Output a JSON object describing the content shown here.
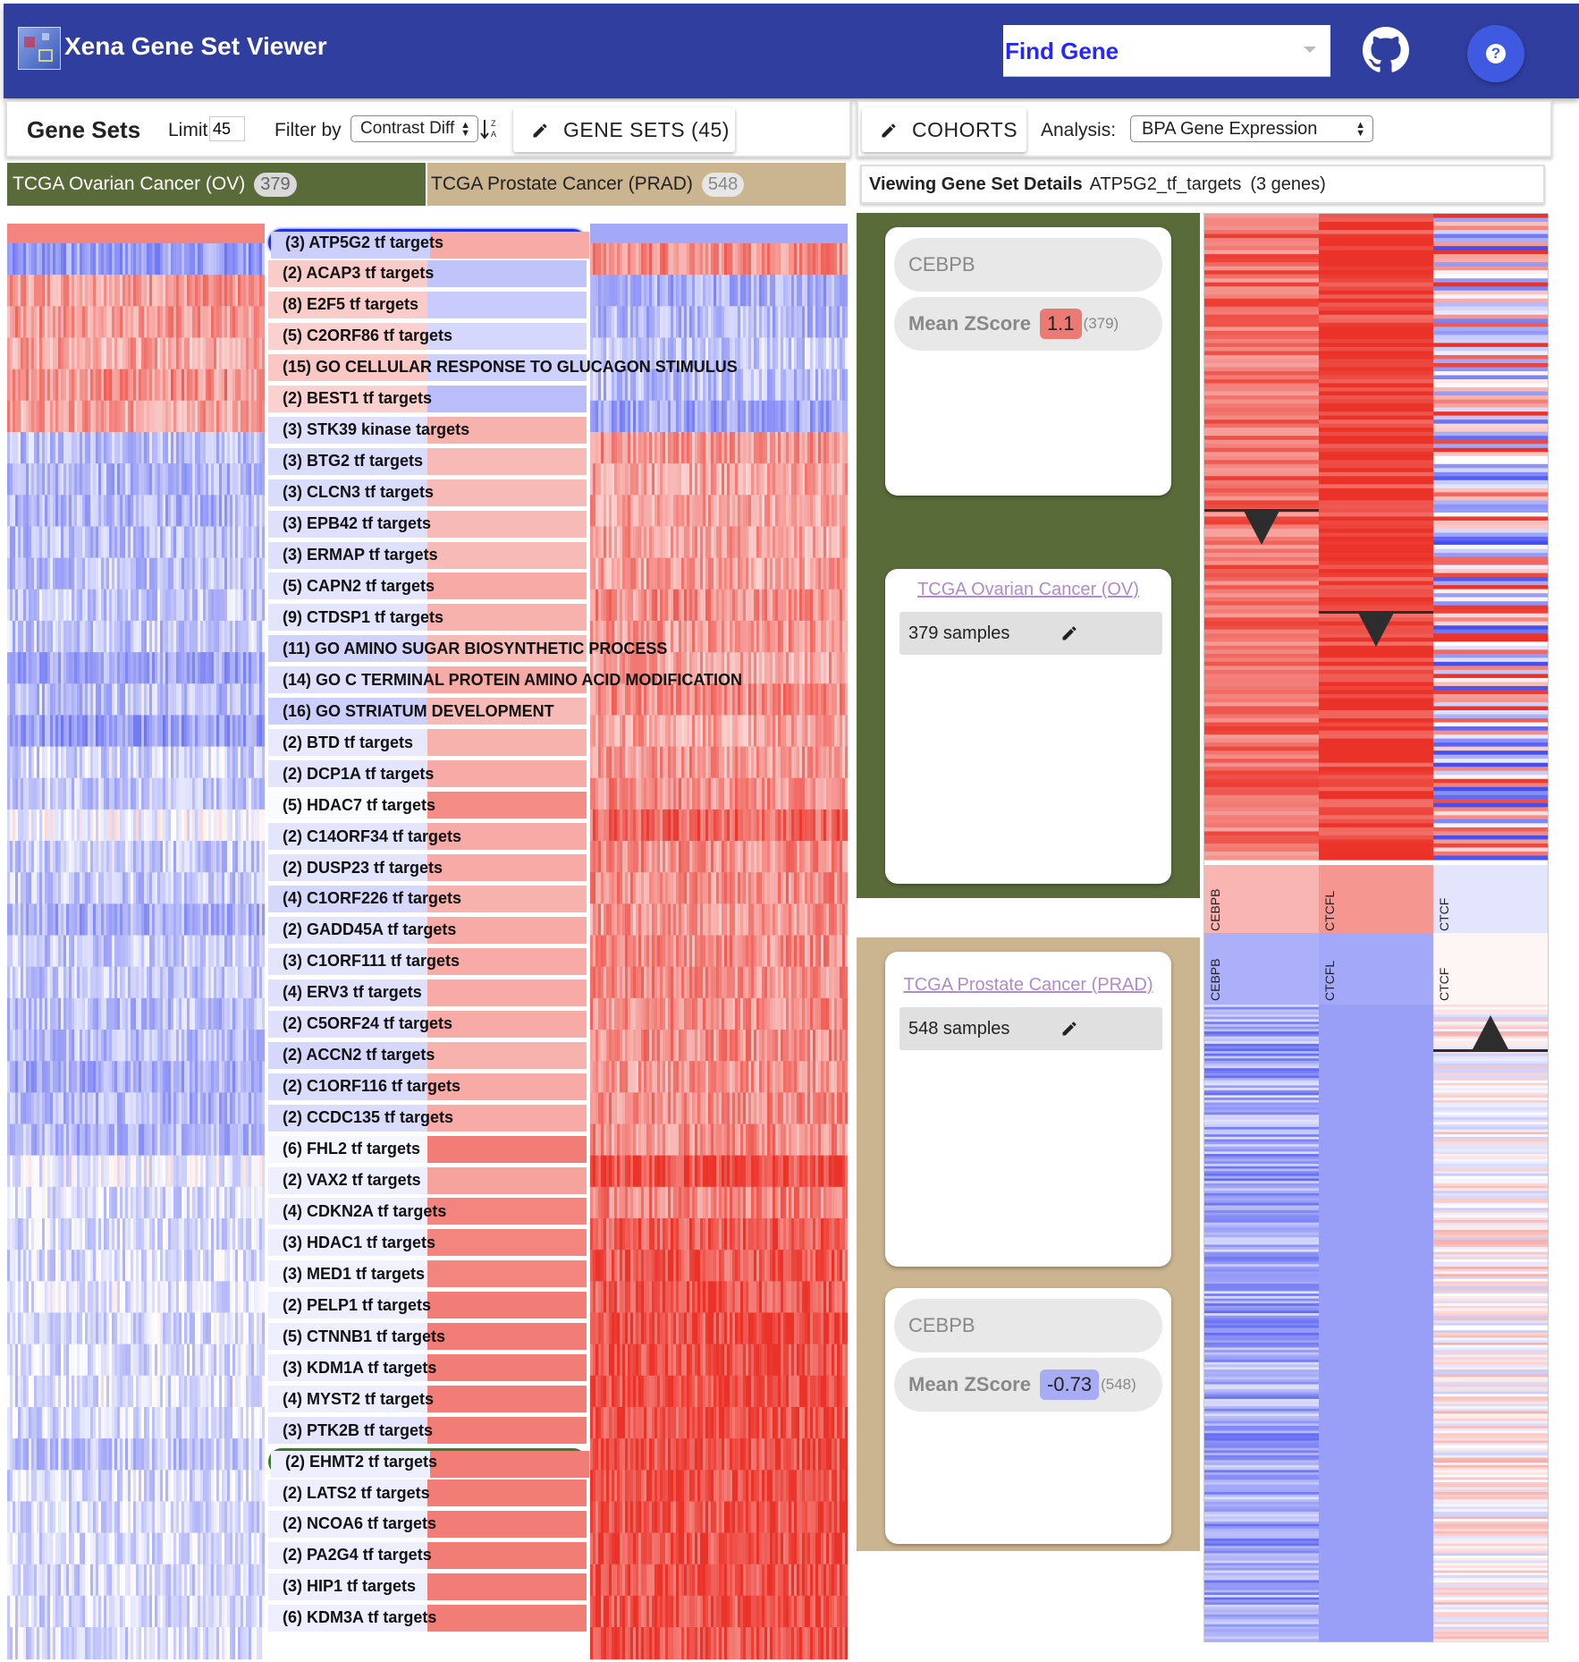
{
  "app": {
    "title": "Xena Gene Set Viewer"
  },
  "search": {
    "placeholder": "Find Gene"
  },
  "toolbar": {
    "gene_sets_label": "Gene Sets",
    "limit_label": "Limit",
    "limit_value": "45",
    "filter_label": "Filter by",
    "filter_value": "Contrast Diff",
    "gene_sets_button": "GENE SETS (45)",
    "cohorts_button": "COHORTS",
    "analysis_label": "Analysis:",
    "analysis_value": "BPA Gene Expression"
  },
  "cohorts": [
    {
      "name": "TCGA Ovarian Cancer (OV)",
      "count": "379",
      "color": "#5a6b3a"
    },
    {
      "name": "TCGA Prostate Cancer (PRAD)",
      "count": "548",
      "color": "#cbb490"
    }
  ],
  "details": {
    "heading": "Viewing Gene Set Details",
    "gene_set": "ATP5G2_tf_targets",
    "gene_count": "(3 genes)"
  },
  "gene_sets": [
    {
      "label": "(3) ATP5G2 tf targets",
      "ov": -0.55,
      "prad": 0.55
    },
    {
      "label": "(2) ACAP3 tf targets",
      "ov": 0.5,
      "prad": -0.45
    },
    {
      "label": "(8) E2F5 tf targets",
      "ov": 0.5,
      "prad": -0.4
    },
    {
      "label": "(5) C2ORF86 tf targets",
      "ov": 0.45,
      "prad": -0.3
    },
    {
      "label": "(15) GO CELLULAR RESPONSE TO GLUCAGON STIMULUS",
      "ov": 0.55,
      "prad": -0.35
    },
    {
      "label": "(2) BEST1 tf targets",
      "ov": 0.45,
      "prad": -0.5
    },
    {
      "label": "(3) STK39 kinase targets",
      "ov": -0.35,
      "prad": 0.5
    },
    {
      "label": "(3) BTG2 tf targets",
      "ov": -0.4,
      "prad": 0.45
    },
    {
      "label": "(3) CLCN3 tf targets",
      "ov": -0.4,
      "prad": 0.45
    },
    {
      "label": "(3) EPB42 tf targets",
      "ov": -0.35,
      "prad": 0.45
    },
    {
      "label": "(3) ERMAP tf targets",
      "ov": -0.35,
      "prad": 0.45
    },
    {
      "label": "(5) CAPN2 tf targets",
      "ov": -0.3,
      "prad": 0.55
    },
    {
      "label": "(9) CTDSP1 tf targets",
      "ov": -0.3,
      "prad": 0.5
    },
    {
      "label": "(11) GO AMINO SUGAR BIOSYNTHETIC PROCESS",
      "ov": -0.5,
      "prad": 0.45
    },
    {
      "label": "(14) GO C TERMINAL PROTEIN AMINO ACID MODIFICATION",
      "ov": -0.35,
      "prad": 0.55
    },
    {
      "label": "(16) GO STRIATUM DEVELOPMENT",
      "ov": -0.55,
      "prad": 0.45
    },
    {
      "label": "(2) BTD tf targets",
      "ov": -0.25,
      "prad": 0.5
    },
    {
      "label": "(2) DCP1A tf targets",
      "ov": -0.3,
      "prad": 0.55
    },
    {
      "label": "(5) HDAC7 tf targets",
      "ov": -0.05,
      "prad": 0.75
    },
    {
      "label": "(2) C14ORF34 tf targets",
      "ov": -0.3,
      "prad": 0.55
    },
    {
      "label": "(2) DUSP23 tf targets",
      "ov": -0.3,
      "prad": 0.55
    },
    {
      "label": "(4) C1ORF226 tf targets",
      "ov": -0.45,
      "prad": 0.5
    },
    {
      "label": "(2) GADD45A tf targets",
      "ov": -0.3,
      "prad": 0.55
    },
    {
      "label": "(3) C1ORF111 tf targets",
      "ov": -0.3,
      "prad": 0.55
    },
    {
      "label": "(4) ERV3 tf targets",
      "ov": -0.35,
      "prad": 0.55
    },
    {
      "label": "(2) C5ORF24 tf targets",
      "ov": -0.35,
      "prad": 0.55
    },
    {
      "label": "(2) ACCN2 tf targets",
      "ov": -0.45,
      "prad": 0.5
    },
    {
      "label": "(2) C1ORF116 tf targets",
      "ov": -0.4,
      "prad": 0.55
    },
    {
      "label": "(2) CCDC135 tf targets",
      "ov": -0.4,
      "prad": 0.55
    },
    {
      "label": "(6) FHL2 tf targets",
      "ov": -0.1,
      "prad": 0.85
    },
    {
      "label": "(2) VAX2 tf targets",
      "ov": -0.2,
      "prad": 0.6
    },
    {
      "label": "(4) CDKN2A tf targets",
      "ov": -0.2,
      "prad": 0.8
    },
    {
      "label": "(3) HDAC1 tf targets",
      "ov": -0.2,
      "prad": 0.8
    },
    {
      "label": "(3) MED1 tf targets",
      "ov": -0.15,
      "prad": 0.8
    },
    {
      "label": "(2) PELP1 tf targets",
      "ov": -0.2,
      "prad": 0.85
    },
    {
      "label": "(5) CTNNB1 tf targets",
      "ov": -0.2,
      "prad": 0.85
    },
    {
      "label": "(3) KDM1A tf targets",
      "ov": -0.2,
      "prad": 0.85
    },
    {
      "label": "(4) MYST2 tf targets",
      "ov": -0.2,
      "prad": 0.85
    },
    {
      "label": "(3) PTK2B tf targets",
      "ov": -0.3,
      "prad": 0.85
    },
    {
      "label": "(2) EHMT2 tf targets",
      "ov": -0.2,
      "prad": 0.85
    },
    {
      "label": "(2) LATS2 tf targets",
      "ov": -0.2,
      "prad": 0.85
    },
    {
      "label": "(2) NCOA6 tf targets",
      "ov": -0.2,
      "prad": 0.85
    },
    {
      "label": "(2) PA2G4 tf targets",
      "ov": -0.2,
      "prad": 0.85
    },
    {
      "label": "(3) HIP1 tf targets",
      "ov": -0.2,
      "prad": 0.85
    },
    {
      "label": "(6) KDM3A tf targets",
      "ov": -0.2,
      "prad": 0.85
    }
  ],
  "ov_panel": {
    "gene": "CEBPB",
    "mean_label": "Mean ZScore",
    "mean_value": "1.1",
    "mean_count": "(379)",
    "mean_color": "#ec7a74",
    "cohort_link": "TCGA Ovarian Cancer (OV)",
    "samples": "379 samples"
  },
  "prad_panel": {
    "cohort_link": "TCGA Prostate Cancer (PRAD)",
    "samples": "548 samples",
    "gene": "CEBPB",
    "mean_label": "Mean ZScore",
    "mean_value": "-0.73",
    "mean_count": "(548)",
    "mean_color": "#a8acf4"
  },
  "gene_columns": [
    {
      "gene": "CEBPB",
      "ov_mean": 0.6,
      "prad_mean": -0.5
    },
    {
      "gene": "CTCFL",
      "ov_mean": 0.85,
      "prad_mean": -0.55
    },
    {
      "gene": "CTCF",
      "ov_mean": 0.0,
      "prad_mean": 0.05
    }
  ]
}
